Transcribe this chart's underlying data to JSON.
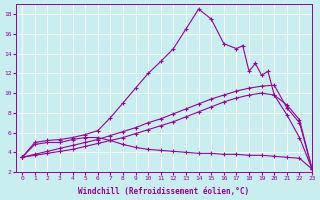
{
  "xlabel": "Windchill (Refroidissement éolien,°C)",
  "bg_color": "#c8eef0",
  "grid_color": "#ffffff",
  "line_color": "#990099",
  "xlim": [
    -0.5,
    23
  ],
  "ylim": [
    2,
    19
  ],
  "xticks": [
    0,
    1,
    2,
    3,
    4,
    5,
    6,
    7,
    8,
    9,
    10,
    11,
    12,
    13,
    14,
    15,
    16,
    17,
    18,
    19,
    20,
    21,
    22,
    23
  ],
  "yticks": [
    2,
    4,
    6,
    8,
    10,
    12,
    14,
    16,
    18
  ],
  "line1_x": [
    0,
    1,
    2,
    3,
    4,
    5,
    6,
    7,
    8,
    9,
    10,
    11,
    12,
    13,
    14,
    15,
    16,
    17,
    17.5,
    18,
    18.5,
    19,
    19.5,
    20,
    21,
    22,
    23
  ],
  "line1_y": [
    3.5,
    5.0,
    5.2,
    5.3,
    5.5,
    5.8,
    6.2,
    7.5,
    9.0,
    10.5,
    12.0,
    13.2,
    14.5,
    16.5,
    18.5,
    17.5,
    15.0,
    14.5,
    14.8,
    12.2,
    13.0,
    11.8,
    12.2,
    9.8,
    8.8,
    7.3,
    2.3
  ],
  "line2_x": [
    0,
    1,
    2,
    3,
    4,
    5,
    6,
    7,
    8,
    9,
    10,
    11,
    12,
    13,
    14,
    15,
    16,
    17,
    18,
    19,
    20,
    21,
    22,
    23
  ],
  "line2_y": [
    3.5,
    4.8,
    5.0,
    5.0,
    5.3,
    5.5,
    5.5,
    5.2,
    4.8,
    4.5,
    4.3,
    4.2,
    4.1,
    4.0,
    3.9,
    3.9,
    3.8,
    3.8,
    3.7,
    3.7,
    3.6,
    3.5,
    3.4,
    2.3
  ],
  "line3_x": [
    0,
    1,
    2,
    3,
    4,
    5,
    6,
    7,
    8,
    9,
    10,
    11,
    12,
    13,
    14,
    15,
    16,
    17,
    18,
    19,
    20,
    21,
    22,
    23
  ],
  "line3_y": [
    3.5,
    3.8,
    4.1,
    4.4,
    4.7,
    5.0,
    5.3,
    5.7,
    6.1,
    6.5,
    7.0,
    7.4,
    7.9,
    8.4,
    8.9,
    9.4,
    9.8,
    10.2,
    10.5,
    10.7,
    10.8,
    8.5,
    7.0,
    2.3
  ],
  "line4_x": [
    0,
    1,
    2,
    3,
    4,
    5,
    6,
    7,
    8,
    9,
    10,
    11,
    12,
    13,
    14,
    15,
    16,
    17,
    18,
    19,
    20,
    21,
    22,
    23
  ],
  "line4_y": [
    3.5,
    3.7,
    3.9,
    4.1,
    4.3,
    4.6,
    4.9,
    5.2,
    5.5,
    5.9,
    6.3,
    6.7,
    7.1,
    7.6,
    8.1,
    8.6,
    9.1,
    9.5,
    9.8,
    10.0,
    9.8,
    7.8,
    5.5,
    2.3
  ]
}
